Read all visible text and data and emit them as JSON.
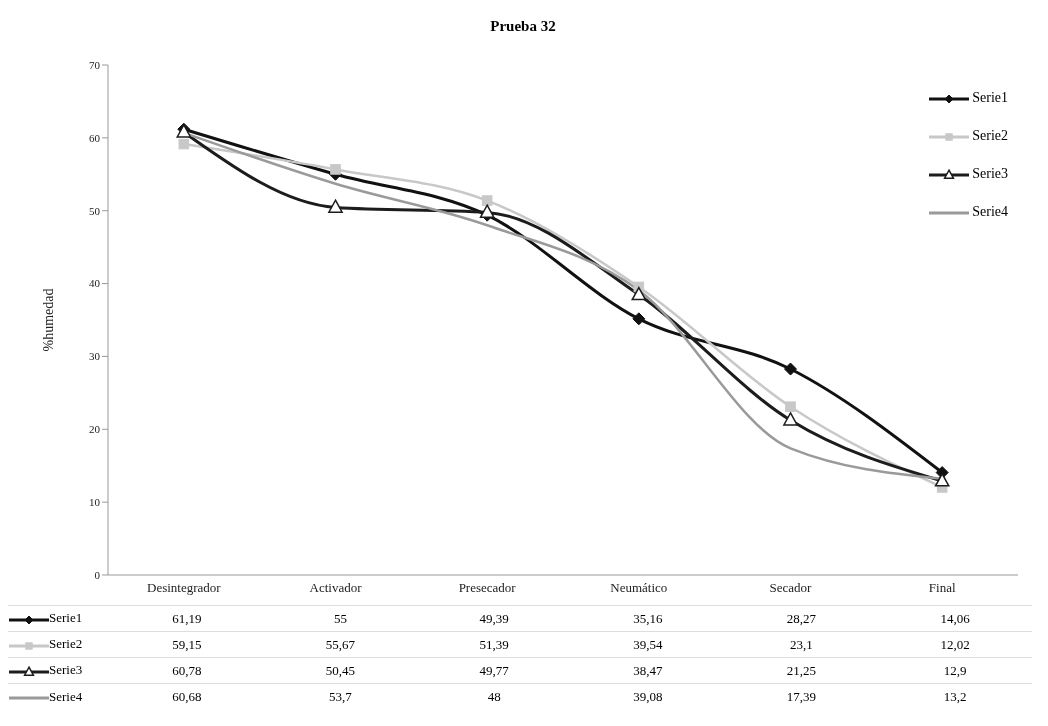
{
  "chart_data": {
    "type": "line",
    "title": "Prueba 32",
    "ylabel": "%humedad",
    "categories": [
      "Desintegrador",
      "Activador",
      "Presecador",
      "Neumático",
      "Secador",
      "Final"
    ],
    "series": [
      {
        "name": "Serie1",
        "color": "#111111",
        "marker": "diamond",
        "values": [
          61.19,
          55,
          49.39,
          35.16,
          28.27,
          14.06
        ],
        "value_labels": [
          "61,19",
          "55",
          "49,39",
          "35,16",
          "28,27",
          "14,06"
        ]
      },
      {
        "name": "Serie2",
        "color": "#c8c8c8",
        "marker": "square",
        "values": [
          59.15,
          55.67,
          51.39,
          39.54,
          23.1,
          12.02
        ],
        "value_labels": [
          "59,15",
          "55,67",
          "51,39",
          "39,54",
          "23,1",
          "12,02"
        ]
      },
      {
        "name": "Serie3",
        "color": "#1c1c1c",
        "marker": "triangle",
        "values": [
          60.78,
          50.45,
          49.77,
          38.47,
          21.25,
          12.9
        ],
        "value_labels": [
          "60,78",
          "50,45",
          "49,77",
          "38,47",
          "21,25",
          "12,9"
        ]
      },
      {
        "name": "Serie4",
        "color": "#9a9a9a",
        "marker": "none",
        "values": [
          60.68,
          53.7,
          48,
          39.08,
          17.39,
          13.2
        ],
        "value_labels": [
          "60,68",
          "53,7",
          "48",
          "39,08",
          "17,39",
          "13,2"
        ]
      }
    ],
    "ylim": [
      0,
      70
    ],
    "yticks": [
      0,
      10,
      20,
      30,
      40,
      50,
      60,
      70
    ],
    "legend": "top right",
    "line_style": "solid"
  }
}
